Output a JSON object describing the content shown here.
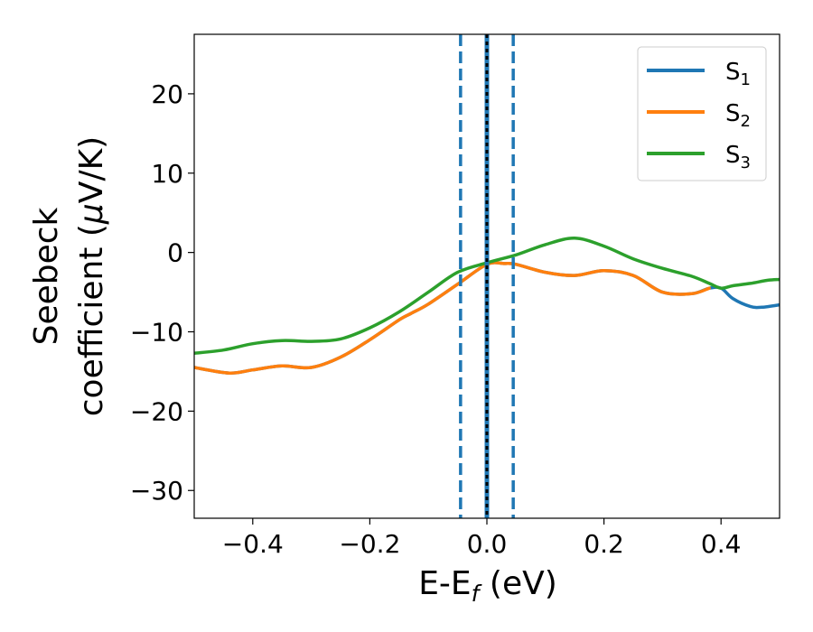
{
  "chart_data": {
    "type": "line",
    "xlabel": {
      "main": "E-E",
      "sub": "f",
      "tail": " (eV)"
    },
    "ylabel": {
      "line1": "Seebeck",
      "line2_pre": "coefficient  (",
      "line2_mu": "μ",
      "line2_post": "V/K)"
    },
    "xlim": [
      -0.5,
      0.5
    ],
    "ylim": [
      -33.5,
      27.5
    ],
    "xticks": [
      -0.4,
      -0.2,
      0.0,
      0.2,
      0.4
    ],
    "xtick_labels": [
      "−0.4",
      "−0.2",
      "0.0",
      "0.2",
      "0.4"
    ],
    "yticks": [
      -30,
      -20,
      -10,
      0,
      10,
      20
    ],
    "ytick_labels": [
      "−30",
      "−20",
      "−10",
      "0",
      "10",
      "20"
    ],
    "grid": false,
    "legend_position": "top-right",
    "series": [
      {
        "name": "S",
        "sub": "1",
        "color": "#1f77b4",
        "x": [
          -0.5,
          -0.44,
          -0.4,
          -0.35,
          -0.3,
          -0.25,
          -0.2,
          -0.15,
          -0.13,
          -0.1,
          -0.05,
          0.0,
          0.03,
          0.05,
          0.1,
          0.15,
          0.2,
          0.25,
          0.3,
          0.35,
          0.38,
          0.4,
          0.42,
          0.45,
          0.47,
          0.5
        ],
        "y": [
          -14.5,
          -15.2,
          -14.8,
          -14.3,
          -14.5,
          -13.2,
          -11.0,
          -8.5,
          -7.7,
          -6.5,
          -4.0,
          -1.5,
          -1.4,
          -1.5,
          -2.5,
          -2.9,
          -2.3,
          -2.9,
          -5.0,
          -5.2,
          -4.5,
          -4.5,
          -5.8,
          -6.8,
          -6.9,
          -6.6
        ]
      },
      {
        "name": "S",
        "sub": "2",
        "color": "#ff7f0e",
        "x": [
          -0.5,
          -0.44,
          -0.4,
          -0.35,
          -0.3,
          -0.25,
          -0.2,
          -0.15,
          -0.13,
          -0.1,
          -0.05,
          0.0,
          0.03,
          0.05,
          0.1,
          0.15,
          0.2,
          0.25,
          0.3,
          0.35,
          0.38
        ],
        "y": [
          -14.5,
          -15.2,
          -14.8,
          -14.3,
          -14.5,
          -13.2,
          -11.0,
          -8.5,
          -7.7,
          -6.5,
          -4.0,
          -1.5,
          -1.4,
          -1.5,
          -2.5,
          -2.9,
          -2.3,
          -2.9,
          -5.0,
          -5.2,
          -4.5
        ]
      },
      {
        "name": "S",
        "sub": "3",
        "color": "#2ca02c",
        "x": [
          -0.5,
          -0.45,
          -0.4,
          -0.35,
          -0.3,
          -0.25,
          -0.2,
          -0.15,
          -0.1,
          -0.05,
          0.0,
          0.05,
          0.1,
          0.15,
          0.2,
          0.25,
          0.3,
          0.35,
          0.38,
          0.4,
          0.42,
          0.45,
          0.48,
          0.5
        ],
        "y": [
          -12.7,
          -12.3,
          -11.5,
          -11.1,
          -11.2,
          -10.9,
          -9.5,
          -7.5,
          -5.0,
          -2.5,
          -1.3,
          -0.3,
          1.0,
          1.8,
          0.8,
          -0.8,
          -2.0,
          -3.0,
          -3.9,
          -4.5,
          -4.2,
          -3.9,
          -3.5,
          -3.4
        ]
      }
    ],
    "vlines": [
      {
        "x": -0.045,
        "style": "dashed",
        "color": "#1f77b4"
      },
      {
        "x": 0.045,
        "style": "dashed",
        "color": "#1f77b4"
      },
      {
        "x": 0.0,
        "style": "solid",
        "color": "#1f77b4"
      },
      {
        "x": 0.0,
        "style": "dotted",
        "color": "#000000"
      }
    ]
  }
}
